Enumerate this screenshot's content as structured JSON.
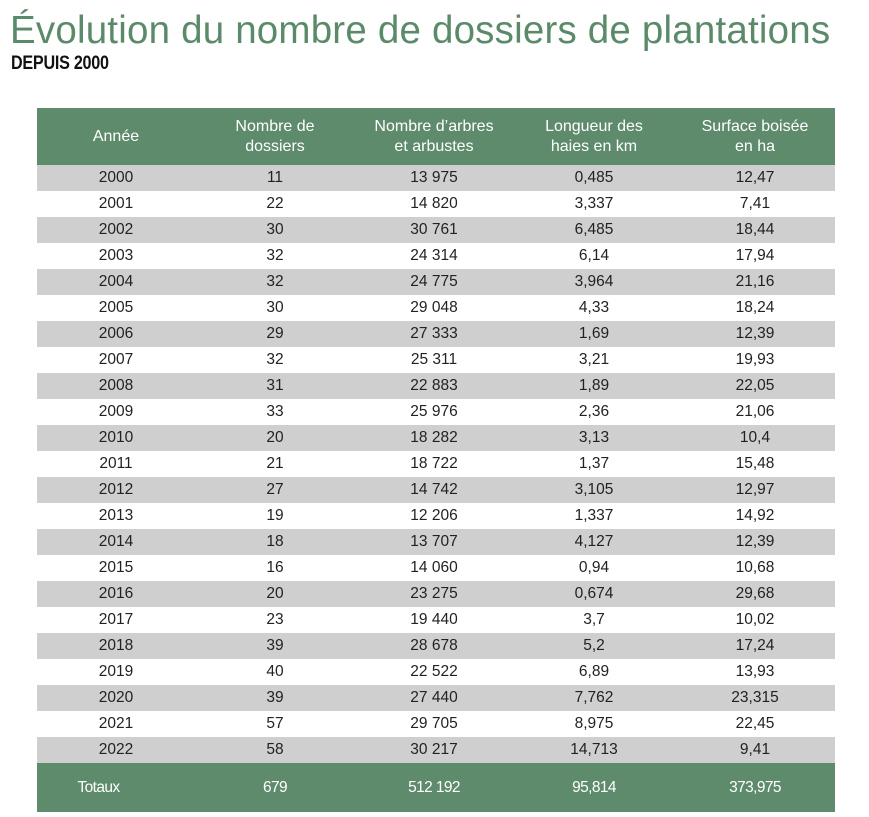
{
  "header": {
    "title": "Évolution du nombre de dossiers de plantations",
    "subtitle": "DEPUIS 2000"
  },
  "table": {
    "columns": [
      "Année",
      "Nombre de dossiers",
      "Nombre d’arbres et arbustes",
      "Longueur des haies en km",
      "Surface boisée en ha"
    ],
    "column_lines": [
      [
        "Année"
      ],
      [
        "Nombre de",
        "dossiers"
      ],
      [
        "Nombre d’arbres",
        "et arbustes"
      ],
      [
        "Longueur des",
        "haies en km"
      ],
      [
        "Surface boisée",
        "en ha"
      ]
    ],
    "rows": [
      [
        "2000",
        "11",
        "13 975",
        "0,485",
        "12,47"
      ],
      [
        "2001",
        "22",
        "14 820",
        "3,337",
        "7,41"
      ],
      [
        "2002",
        "30",
        "30 761",
        "6,485",
        "18,44"
      ],
      [
        "2003",
        "32",
        "24 314",
        "6,14",
        "17,94"
      ],
      [
        "2004",
        "32",
        "24 775",
        "3,964",
        "21,16"
      ],
      [
        "2005",
        "30",
        "29 048",
        "4,33",
        "18,24"
      ],
      [
        "2006",
        "29",
        "27 333",
        "1,69",
        "12,39"
      ],
      [
        "2007",
        "32",
        "25 311",
        "3,21",
        "19,93"
      ],
      [
        "2008",
        "31",
        "22 883",
        "1,89",
        "22,05"
      ],
      [
        "2009",
        "33",
        "25 976",
        "2,36",
        "21,06"
      ],
      [
        "2010",
        "20",
        "18 282",
        "3,13",
        "10,4"
      ],
      [
        "2011",
        "21",
        "18 722",
        "1,37",
        "15,48"
      ],
      [
        "2012",
        "27",
        "14 742",
        "3,105",
        "12,97"
      ],
      [
        "2013",
        "19",
        "12 206",
        "1,337",
        "14,92"
      ],
      [
        "2014",
        "18",
        "13 707",
        "4,127",
        "12,39"
      ],
      [
        "2015",
        "16",
        "14 060",
        "0,94",
        "10,68"
      ],
      [
        "2016",
        "20",
        "23 275",
        "0,674",
        "29,68"
      ],
      [
        "2017",
        "23",
        "19 440",
        "3,7",
        "10,02"
      ],
      [
        "2018",
        "39",
        "28 678",
        "5,2",
        "17,24"
      ],
      [
        "2019",
        "40",
        "22 522",
        "6,89",
        "13,93"
      ],
      [
        "2020",
        "39",
        "27 440",
        "7,762",
        "23,315"
      ],
      [
        "2021",
        "57",
        "29 705",
        "8,975",
        "22,45"
      ],
      [
        "2022",
        "58",
        "30 217",
        "14,713",
        "9,41"
      ]
    ],
    "totals": [
      "Totaux",
      "679",
      "512 192",
      "95,814",
      "373,975"
    ]
  },
  "colors": {
    "title": "#5a8a6a",
    "header_bg": "#5e8b6c",
    "row_alt": "#cfcfcf"
  }
}
